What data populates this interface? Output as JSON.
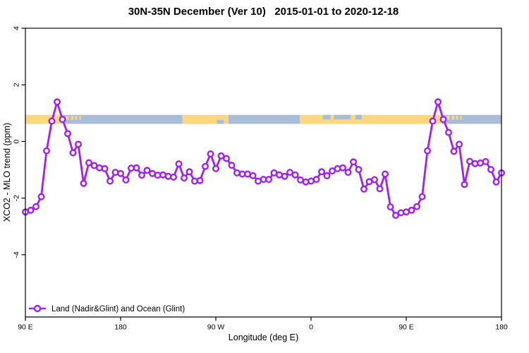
{
  "title": "30N-35N December (Ver 10)   2015-01-01 to 2020-12-18",
  "chart_data": {
    "type": "line",
    "title": "30N-35N December (Ver 10)   2015-01-01 to 2020-12-18",
    "xlabel": "Longitude (deg E)",
    "ylabel": "XCO2 - MLO trend (ppm)",
    "xlim": [
      90,
      540
    ],
    "ylim": [
      -6.2,
      4
    ],
    "grid": false,
    "x_ticks": [
      {
        "value": 90,
        "label": "90 E"
      },
      {
        "value": 180,
        "label": "180"
      },
      {
        "value": 270,
        "label": "90 W"
      },
      {
        "value": 360,
        "label": "0"
      },
      {
        "value": 450,
        "label": "90 E"
      },
      {
        "value": 540,
        "label": "180"
      }
    ],
    "y_ticks": [
      {
        "value": 4,
        "label": "4"
      },
      {
        "value": 2,
        "label": "2"
      },
      {
        "value": 0,
        "label": "0"
      },
      {
        "value": -2,
        "label": "-2"
      },
      {
        "value": -4,
        "label": "-4"
      }
    ],
    "x_start": 90,
    "x_step": 5,
    "series": [
      {
        "name": "Land (Nadir&Glint) and Ocean (Glint)",
        "color": "#A020F0",
        "marker": "open-circle",
        "values": [
          -2.49,
          -2.43,
          -2.3,
          -1.95,
          -0.33,
          0.72,
          1.4,
          0.78,
          0.28,
          -0.4,
          -0.1,
          -1.48,
          -0.75,
          -0.85,
          -0.93,
          -0.96,
          -1.4,
          -1.09,
          -1.13,
          -1.36,
          -0.94,
          -0.93,
          -1.19,
          -1.02,
          -1.13,
          -1.19,
          -1.18,
          -1.23,
          -1.26,
          -0.79,
          -1.29,
          -1.07,
          -1.4,
          -1.38,
          -0.88,
          -0.44,
          -0.96,
          -0.51,
          -0.6,
          -0.84,
          -1.11,
          -1.15,
          -1.15,
          -1.21,
          -1.4,
          -1.34,
          -1.34,
          -1.11,
          -1.18,
          -1.23,
          -1.09,
          -1.18,
          -1.36,
          -1.43,
          -1.4,
          -1.34,
          -1.07,
          -1.21,
          -1.04,
          -0.96,
          -0.93,
          -1.09,
          -0.72,
          -0.99,
          -1.68,
          -1.42,
          -1.35,
          -1.67,
          -1.15,
          -2.31,
          -2.61,
          -2.52,
          -2.49,
          -2.43,
          -2.3,
          -1.95,
          -0.33,
          0.72,
          1.4,
          0.78,
          0.32,
          -0.35,
          -0.1,
          -1.52,
          -0.7,
          -0.78,
          -0.76,
          -0.71,
          -0.99,
          -1.43,
          -1.11
        ]
      }
    ],
    "map_band": {
      "description": "30N-35N world-map strip: tan = land, blue = ocean",
      "y_top": 0.94,
      "y_bottom": 0.62,
      "land_color": "#FBD87E",
      "ocean_color": "#A9BCD8",
      "land_segments": [
        [
          90,
          125.5
        ],
        [
          238.5,
          282
        ],
        [
          349.5,
          484
        ]
      ],
      "ocean_segments": [
        [
          125.5,
          238.5
        ],
        [
          282,
          349.5
        ],
        [
          484,
          540
        ]
      ],
      "island_specks": [
        [
          128.5,
          131
        ],
        [
          133,
          135.5
        ],
        [
          137,
          139
        ],
        [
          141,
          142.5
        ],
        [
          488.5,
          491
        ],
        [
          493,
          495.5
        ],
        [
          497,
          499
        ],
        [
          501,
          502.5
        ]
      ],
      "sea_top_patches": [
        [
          371,
          378.5
        ],
        [
          381.5,
          397.5
        ],
        [
          402,
          408
        ]
      ],
      "sea_bottom_patches": [
        [
          271,
          277.5
        ]
      ]
    },
    "legend": {
      "position": "bottom-left",
      "entries": [
        {
          "label": "Land (Nadir&Glint) and Ocean (Glint)",
          "color": "#A020F0",
          "marker": "open-circle"
        }
      ]
    }
  }
}
